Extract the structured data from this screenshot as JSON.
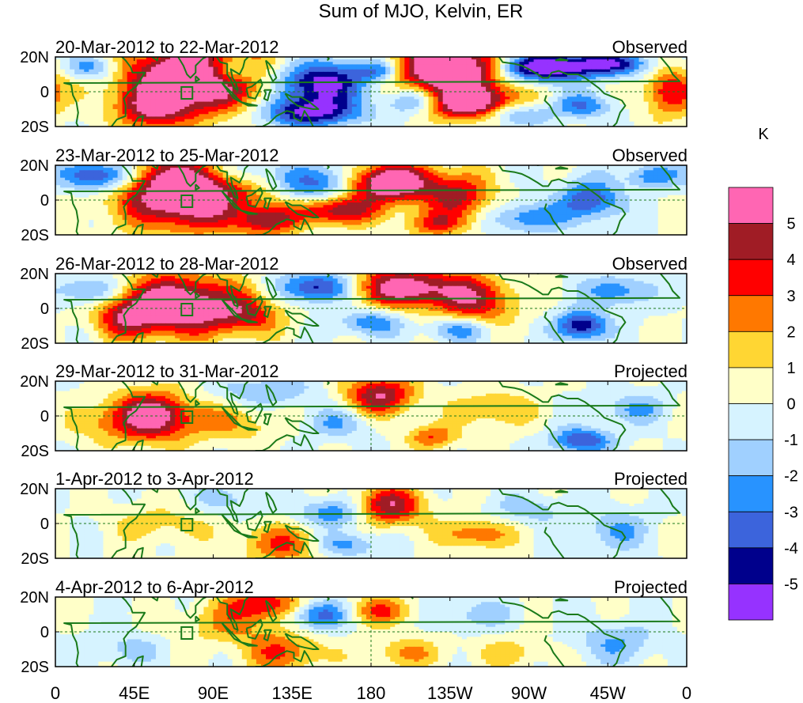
{
  "chart_data": {
    "type": "heatmap",
    "title": "Sum of MJO, Kelvin, ER",
    "units_label": "K",
    "latitude_ticks": [
      "20N",
      "0",
      "20S"
    ],
    "longitude_ticks": [
      "0",
      "45E",
      "90E",
      "135E",
      "180",
      "135W",
      "90W",
      "45W",
      "0"
    ],
    "latitude_range": [
      -20,
      20
    ],
    "longitude_range": [
      0,
      360
    ],
    "colorbar": {
      "labels": [
        "5",
        "4",
        "3",
        "2",
        "1",
        "0",
        "-1",
        "-2",
        "-3",
        "-4",
        "-5"
      ],
      "colors": [
        "#ff66b3",
        "#a01c25",
        "#ff0000",
        "#ff7800",
        "#ffd633",
        "#ffffc8",
        "#d6f3ff",
        "#a0d0ff",
        "#2893ff",
        "#3c64dc",
        "#00008c",
        "#9632ff"
      ]
    },
    "panels": [
      {
        "dates": "20-Mar-2012 to 22-Mar-2012",
        "status": "Observed"
      },
      {
        "dates": "23-Mar-2012 to 25-Mar-2012",
        "status": "Observed"
      },
      {
        "dates": "26-Mar-2012 to 28-Mar-2012",
        "status": "Observed"
      },
      {
        "dates": "29-Mar-2012 to 31-Mar-2012",
        "status": "Projected"
      },
      {
        "dates": "1-Apr-2012 to 3-Apr-2012",
        "status": "Projected"
      },
      {
        "dates": "4-Apr-2012 to 6-Apr-2012",
        "status": "Projected"
      }
    ]
  }
}
